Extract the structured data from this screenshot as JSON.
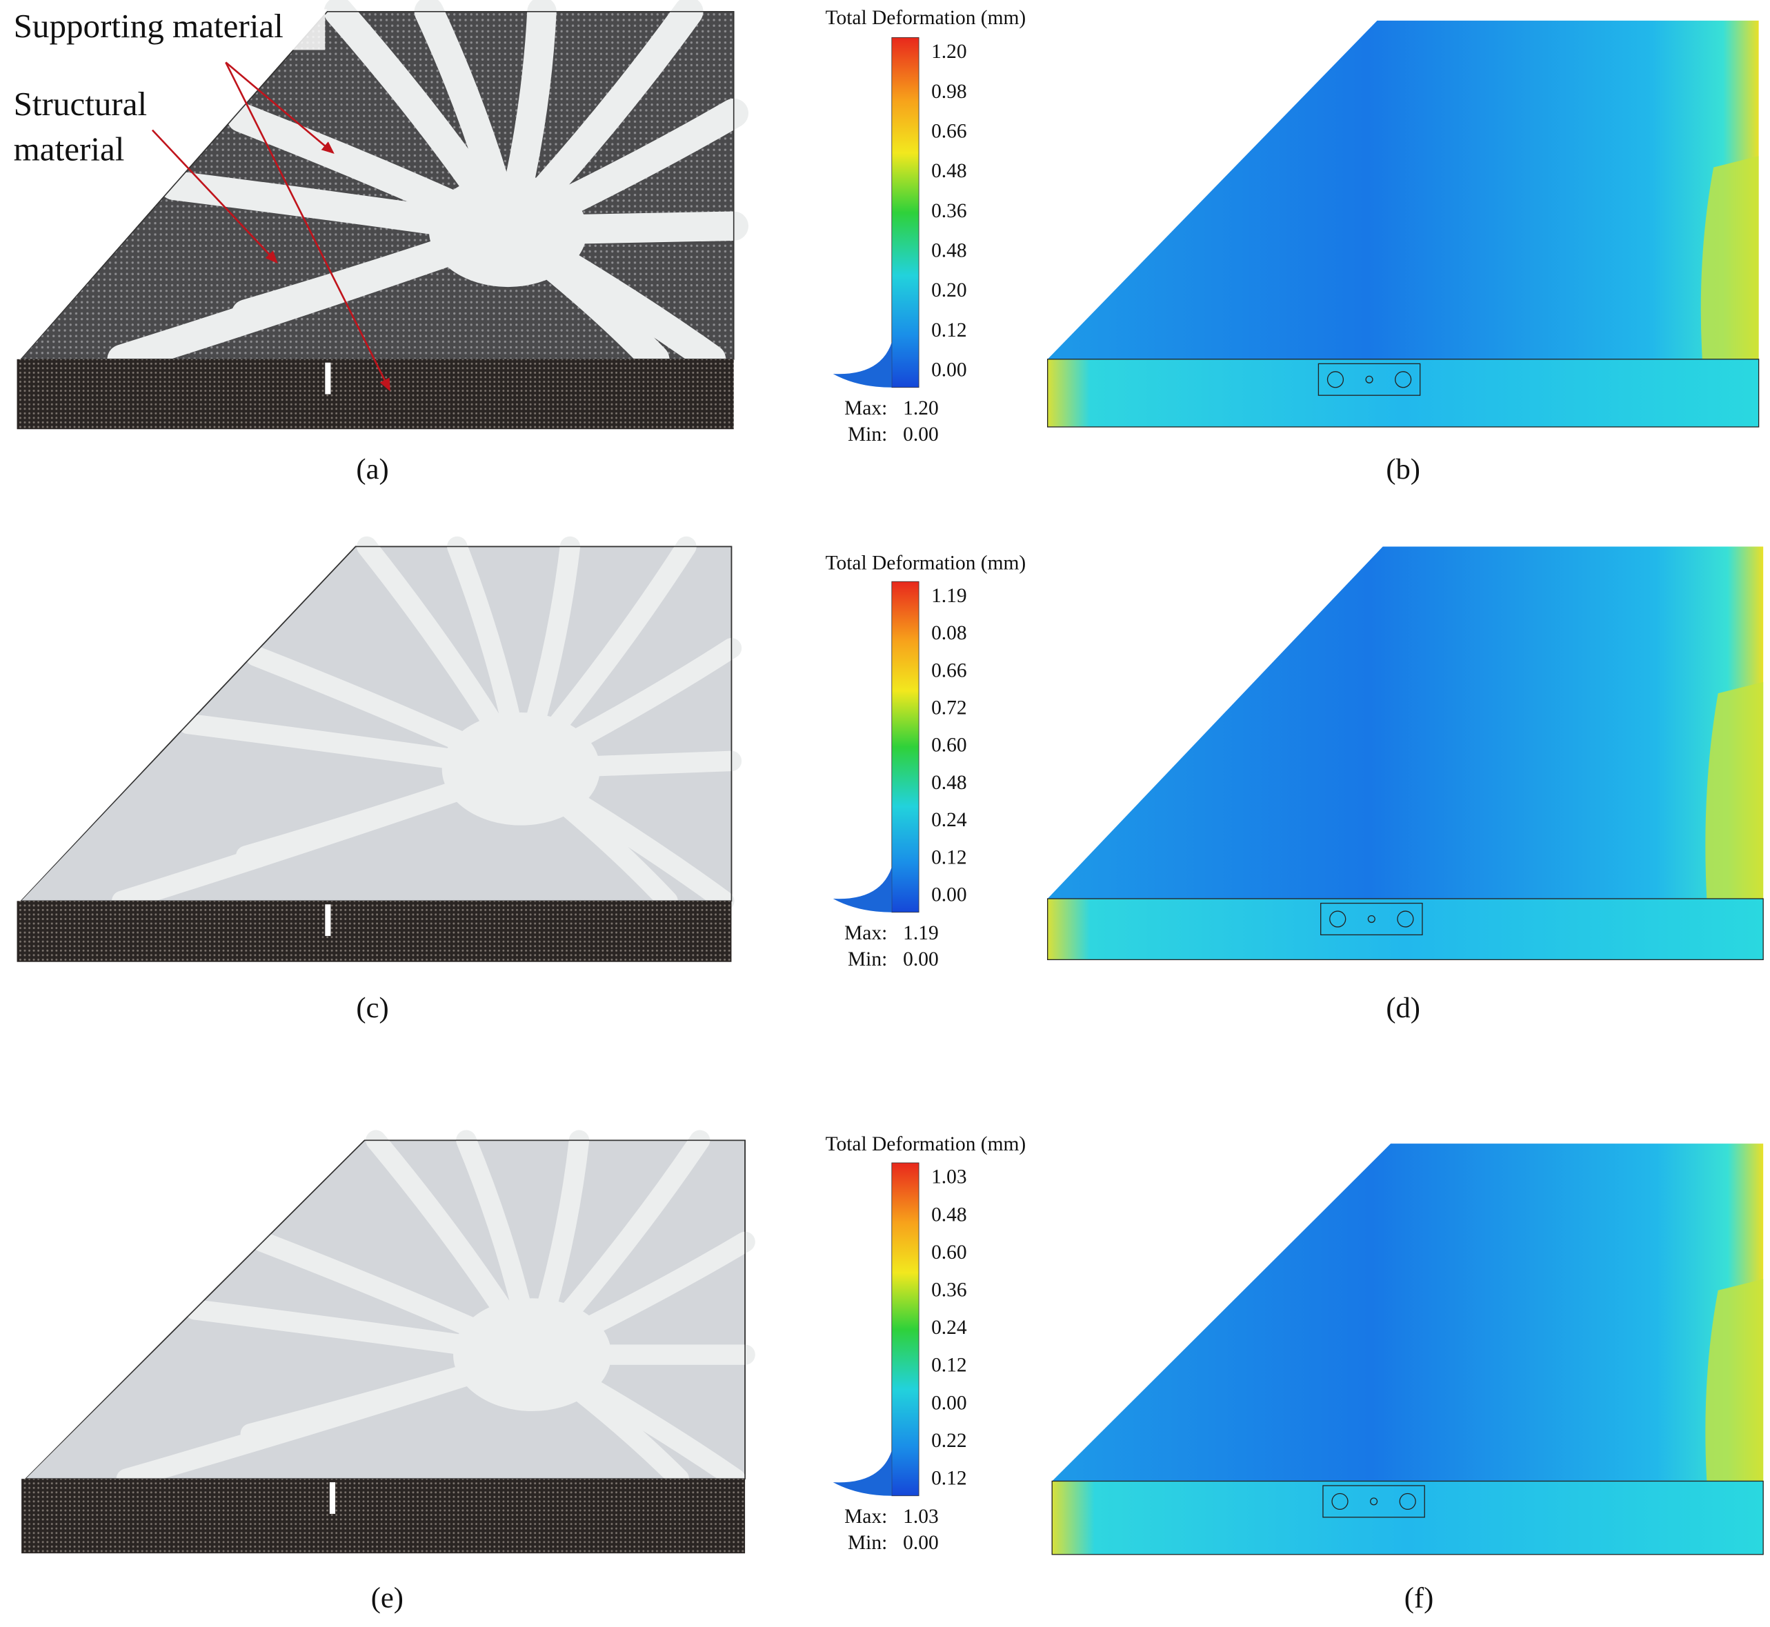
{
  "panels": [
    {
      "label": "(a)",
      "annotations": [
        "Supporting material",
        "Structural",
        "material"
      ]
    },
    {
      "label": "(b)",
      "legend": {
        "title": "Total Deformation (mm)",
        "ticks": [
          "1.20",
          "0.98",
          "0.66",
          "0.48",
          "0.36",
          "0.48",
          "0.20",
          "0.12",
          "0.00"
        ],
        "max_label": "Max:",
        "max": "1.20",
        "min_label": "Min:",
        "min": "0.00"
      }
    },
    {
      "label": "(c)"
    },
    {
      "label": "(d)",
      "legend": {
        "title": "Total Deformation (mm)",
        "ticks": [
          "1.19",
          "0.08",
          "0.66",
          "0.72",
          "0.60",
          "0.48",
          "0.24",
          "0.12",
          "0.00"
        ],
        "max_label": "Max:",
        "max": "1.19",
        "min_label": "Min:",
        "min": "0.00"
      }
    },
    {
      "label": "(e)"
    },
    {
      "label": "(f)",
      "legend": {
        "title": "Total Deformation (mm)",
        "ticks": [
          "1.03",
          "0.48",
          "0.60",
          "0.36",
          "0.24",
          "0.12",
          "0.00",
          "0.22",
          "0.12"
        ],
        "max_label": "Max:",
        "max": "1.03",
        "min_label": "Min:",
        "min": "0.00"
      }
    }
  ]
}
